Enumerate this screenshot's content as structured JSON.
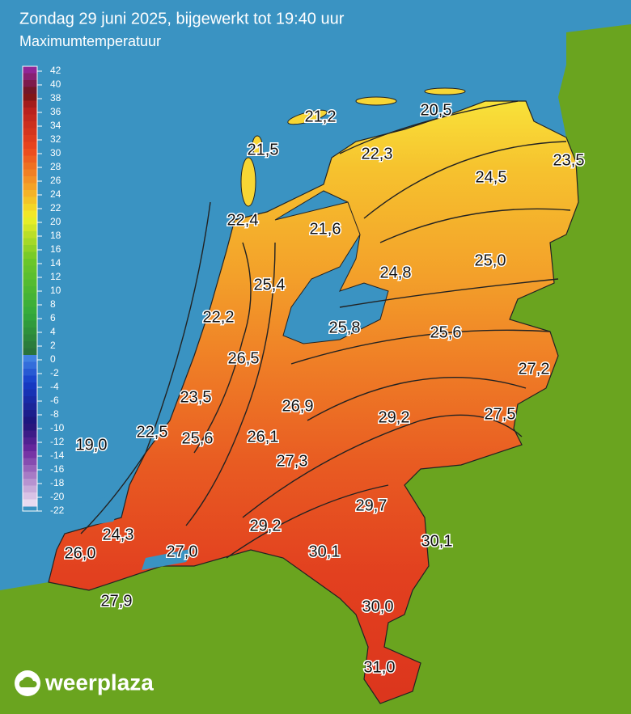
{
  "header": {
    "title": "Zondag 29 juni 2025, bijgewerkt tot 19:40 uur",
    "subtitle": "Maximumtemperatuur"
  },
  "legend": {
    "ticks": [
      42,
      40,
      38,
      36,
      34,
      32,
      30,
      28,
      26,
      24,
      22,
      20,
      18,
      16,
      14,
      12,
      10,
      8,
      6,
      4,
      2,
      0,
      -2,
      -4,
      -6,
      -8,
      -10,
      -12,
      -14,
      -16,
      -18,
      -20,
      -22
    ]
  },
  "stations": [
    "21,2",
    "20,5",
    "21,5",
    "22,3",
    "23,5",
    "24,5",
    "22,4",
    "21,6",
    "25,0",
    "24,8",
    "25,4",
    "22,2",
    "25,8",
    "25,6",
    "26,5",
    "27,2",
    "23,5",
    "26,9",
    "29,2",
    "27,5",
    "22,5",
    "19,0",
    "25,6",
    "26,1",
    "27,3",
    "29,7",
    "30,1",
    "29,2",
    "24,3",
    "30,1",
    "26,0",
    "27,0",
    "27,9",
    "30,0",
    "31,0"
  ],
  "brand": "weerplaza"
}
